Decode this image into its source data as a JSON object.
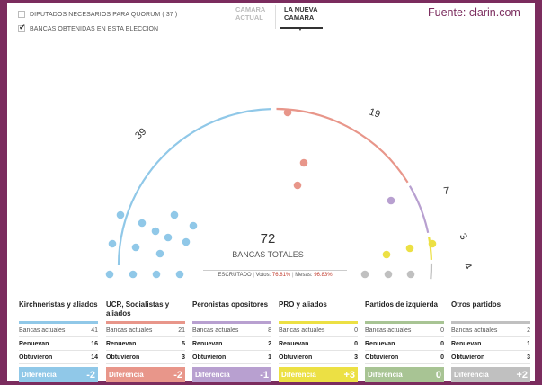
{
  "options": {
    "quorum_label": "DIPUTADOS NECESARIOS PARA QUORUM ( 37 )",
    "bancas_label": "BANCAS OBTENIDAS EN ESTA ELECCION"
  },
  "tabs": [
    {
      "label": "CAMARA ACTUAL"
    },
    {
      "label": "LA NUEVA CAMARA"
    }
  ],
  "source": "Fuente: clarin.com",
  "hemicycle": {
    "total": "72",
    "total_label": "BANCAS TOTALES",
    "scrutinized_label": "ESCRUTADO",
    "votos_label": "Votos:",
    "votos_value": "76.81%",
    "mesas_label": "Mesas:",
    "mesas_value": "96.83%",
    "segment_labels": [
      "39",
      "19",
      "7",
      "3",
      "4"
    ]
  },
  "colors": {
    "kirchneristas": "#90c8e8",
    "ucr": "#e8968a",
    "peronistas": "#b8a0d0",
    "pro": "#ece044",
    "izquierda": "#a8c494",
    "otros": "#c0c0c0",
    "source_text": "#7b2c5e"
  },
  "parties": [
    {
      "name": "Kirchneristas y aliados",
      "color": "#90c8e8",
      "bancas_label": "Bancas actuales",
      "bancas": "41",
      "renuevan_label": "Renuevan",
      "renuevan": "16",
      "obtuvieron_label": "Obtuvieron",
      "obtuvieron": "14",
      "diff_label": "Diferencia",
      "diff": "-2"
    },
    {
      "name": "UCR, Socialistas y aliados",
      "color": "#e8968a",
      "bancas_label": "Bancas actuales",
      "bancas": "21",
      "renuevan_label": "Renuevan",
      "renuevan": "5",
      "obtuvieron_label": "Obtuvieron",
      "obtuvieron": "3",
      "diff_label": "Diferencia",
      "diff": "-2"
    },
    {
      "name": "Peronistas opositores",
      "color": "#b8a0d0",
      "bancas_label": "Bancas actuales",
      "bancas": "8",
      "renuevan_label": "Renuevan",
      "renuevan": "2",
      "obtuvieron_label": "Obtuvieron",
      "obtuvieron": "1",
      "diff_label": "Diferencia",
      "diff": "-1"
    },
    {
      "name": "PRO y aliados",
      "color": "#ece044",
      "bancas_label": "Bancas actuales",
      "bancas": "0",
      "renuevan_label": "Renuevan",
      "renuevan": "0",
      "obtuvieron_label": "Obtuvieron",
      "obtuvieron": "3",
      "diff_label": "Diferencia",
      "diff": "+3"
    },
    {
      "name": "Partidos de izquierda",
      "color": "#a8c494",
      "bancas_label": "Bancas actuales",
      "bancas": "0",
      "renuevan_label": "Renuevan",
      "renuevan": "0",
      "obtuvieron_label": "Obtuvieron",
      "obtuvieron": "0",
      "diff_label": "Diferencia",
      "diff": "0"
    },
    {
      "name": "Otros partidos",
      "color": "#c0c0c0",
      "bancas_label": "Bancas actuales",
      "bancas": "2",
      "renuevan_label": "Renuevan",
      "renuevan": "1",
      "obtuvieron_label": "Obtuvieron",
      "obtuvieron": "3",
      "diff_label": "Diferencia",
      "diff": "+2"
    }
  ]
}
